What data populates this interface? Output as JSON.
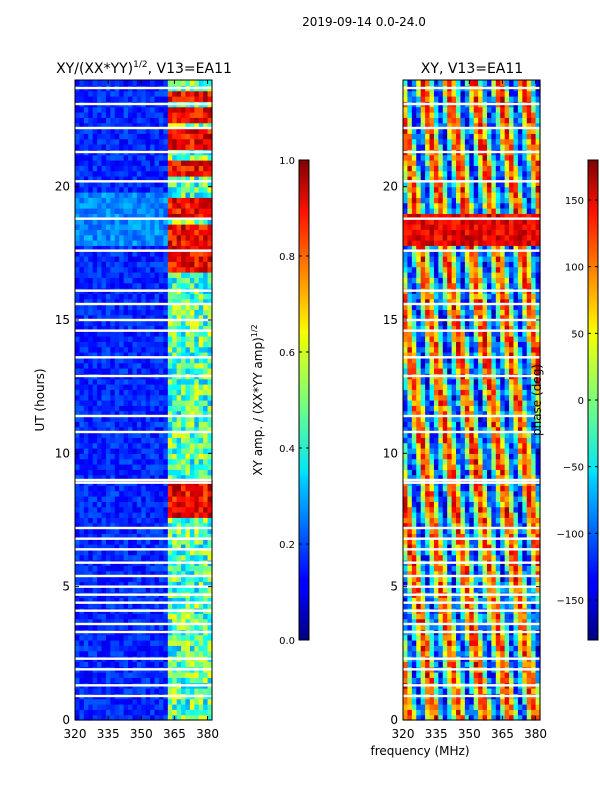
{
  "figure_title": "2019-09-14 0.0-24.0",
  "shared_xlabel": "frequency (MHz)",
  "chart_data": [
    {
      "type": "heatmap",
      "title": "XY/(XX*YY)",
      "title_sup": "1/2",
      "title_suffix": ", V13=EA11",
      "ylabel": "UT (hours)",
      "xlabel": "frequency (MHz)",
      "xlim": [
        320,
        382
      ],
      "ylim": [
        0,
        24
      ],
      "xticks": [
        320,
        335,
        350,
        365,
        380
      ],
      "yticks": [
        0,
        5,
        10,
        15,
        20
      ],
      "colormap": "jet",
      "colorbar": {
        "label": "XY amp. / (XX*YY amp)",
        "label_sup": "1/2",
        "range": [
          0.0,
          1.0
        ],
        "ticks": [
          "0.0",
          "0.2",
          "0.4",
          "0.6",
          "0.8",
          "1.0"
        ]
      },
      "high_value_bands_MHz": [
        [
          363,
          368
        ],
        [
          369,
          374
        ],
        [
          375,
          379
        ],
        [
          380,
          382
        ]
      ],
      "strong_rfi_hours": [
        [
          7.6,
          8.9
        ],
        [
          16.8,
          17.5
        ],
        [
          17.7,
          18.6
        ],
        [
          18.9,
          19.7
        ],
        [
          20.3,
          21.0
        ],
        [
          21.4,
          22.1
        ],
        [
          22.3,
          23.0
        ],
        [
          23.2,
          23.6
        ]
      ],
      "flagged_hours": [
        0.9,
        1.3,
        1.9,
        2.3,
        3.3,
        3.6,
        4.1,
        4.4,
        4.7,
        5.0,
        5.4,
        5.9,
        6.4,
        6.8,
        7.2,
        8.9,
        9.0,
        10.8,
        11.4,
        12.9,
        13.6,
        14.6,
        15.0,
        15.6,
        16.1,
        17.6,
        18.8,
        20.2,
        21.3,
        22.2,
        23.1,
        23.7
      ]
    },
    {
      "type": "heatmap",
      "title": "XY, V13=EA11",
      "ylabel": "",
      "xlabel": "frequency (MHz)",
      "xlim": [
        320,
        382
      ],
      "ylim": [
        0,
        24
      ],
      "xticks": [
        320,
        335,
        350,
        365,
        380
      ],
      "yticks": [
        0,
        5,
        10,
        15,
        20
      ],
      "colormap": "jet",
      "colorbar": {
        "label": "phase (deg)",
        "range": [
          -180,
          180
        ],
        "ticks": [
          "150",
          "100",
          "50",
          "0",
          "−50",
          "−100",
          "−150"
        ]
      },
      "flagged_hours": [
        0.9,
        1.3,
        1.9,
        2.3,
        3.3,
        3.6,
        4.1,
        4.4,
        4.7,
        5.0,
        5.4,
        5.9,
        6.4,
        6.8,
        7.2,
        8.9,
        9.0,
        10.8,
        11.4,
        12.9,
        13.6,
        14.6,
        15.0,
        15.6,
        16.1,
        17.6,
        18.8,
        20.2,
        21.3,
        22.2,
        23.1,
        23.7
      ]
    }
  ]
}
